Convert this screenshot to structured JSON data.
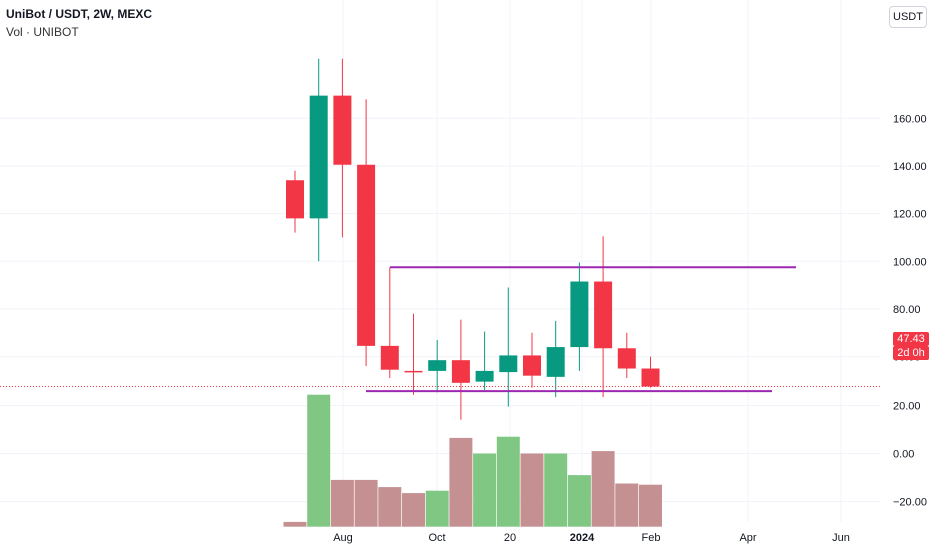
{
  "header": {
    "title": "UniBot / USDT, 2W, MEXC",
    "volume_label": "Vol · UNIBOT"
  },
  "currency_label": "USDT",
  "last_price": {
    "value": "47.43",
    "countdown": "2d 0h"
  },
  "colors": {
    "up": "#089981",
    "down": "#f23645",
    "vol_up": "#81c784",
    "vol_down": "#c59092",
    "channel": "#9c27b0"
  },
  "chart_data": [
    {
      "type": "candlestick",
      "title": "UniBot / USDT, 2W, MEXC",
      "ylim": [
        30,
        180
      ],
      "y_ticks": [
        60,
        80,
        100,
        120,
        140,
        160
      ],
      "y_tick_labels": [
        "60.00",
        "80.00",
        "100.00",
        "120.00",
        "140.00",
        "160.00"
      ],
      "x_tick_labels": [
        "Aug",
        "Oct",
        "20",
        "2024",
        "Feb",
        "Apr",
        "Jun"
      ],
      "grid": true,
      "candles": [
        {
          "open": 134.0,
          "high": 138.0,
          "low": 112.0,
          "close": 118.0
        },
        {
          "open": 118.0,
          "high": 190.0,
          "low": 100.0,
          "close": 169.5
        },
        {
          "open": 169.5,
          "high": 190.0,
          "low": 110.0,
          "close": 140.5
        },
        {
          "open": 140.5,
          "high": 168.0,
          "low": 56.0,
          "close": 64.5
        },
        {
          "open": 64.5,
          "high": 97.5,
          "low": 51.0,
          "close": 54.5
        },
        {
          "open": 54.0,
          "high": 78.0,
          "low": 44.0,
          "close": 53.5
        },
        {
          "open": 54.0,
          "high": 67.0,
          "low": 45.0,
          "close": 58.5
        },
        {
          "open": 58.5,
          "high": 75.5,
          "low": 33.5,
          "close": 49.0
        },
        {
          "open": 49.5,
          "high": 70.5,
          "low": 46.0,
          "close": 54.0
        },
        {
          "open": 53.5,
          "high": 89.0,
          "low": 39.0,
          "close": 60.5
        },
        {
          "open": 60.5,
          "high": 70.0,
          "low": 47.0,
          "close": 52.0
        },
        {
          "open": 51.5,
          "high": 75.0,
          "low": 43.0,
          "close": 64.0
        },
        {
          "open": 64.0,
          "high": 99.5,
          "low": 54.0,
          "close": 91.5
        },
        {
          "open": 91.5,
          "high": 110.5,
          "low": 43.0,
          "close": 63.5
        },
        {
          "open": 63.5,
          "high": 70.0,
          "low": 51.0,
          "close": 55.0
        },
        {
          "open": 55.0,
          "high": 60.0,
          "low": 47.0,
          "close": 47.43
        }
      ],
      "horizontal_lines": [
        {
          "value": 97.5,
          "color": "#9c27b0"
        },
        {
          "value": 45.5,
          "color": "#9c27b0"
        }
      ],
      "last_price_line": 47.43
    },
    {
      "type": "bar",
      "title": "Vol · UNIBOT",
      "ylim": [
        -30,
        30
      ],
      "y_ticks": [
        -20,
        0,
        20
      ],
      "y_tick_labels": [
        "−20.00",
        "0.00",
        "20.00"
      ],
      "values": [
        -28.5,
        24.5,
        -11.0,
        -11.0,
        -14.0,
        -16.5,
        -15.5,
        6.5,
        0.0,
        7.0,
        0.0,
        0.0,
        -9.0,
        1.0,
        -12.5,
        -13.0
      ],
      "directions": [
        "down",
        "up",
        "down",
        "down",
        "down",
        "down",
        "up",
        "down",
        "up",
        "up",
        "down",
        "up",
        "up",
        "down",
        "down",
        "down"
      ]
    }
  ]
}
